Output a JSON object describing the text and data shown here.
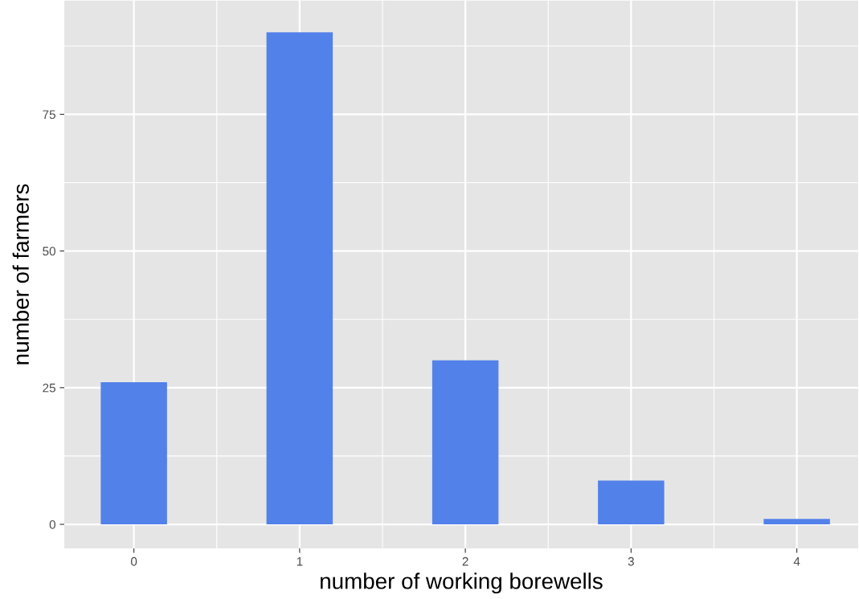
{
  "chart_data": {
    "type": "bar",
    "xlabel": "number of working borewells",
    "ylabel": "number of farmers",
    "x": [
      0,
      1,
      2,
      3,
      4
    ],
    "values": [
      26,
      90,
      30,
      8,
      1
    ],
    "color": "#5381ea",
    "xlim": [
      -0.42,
      4.37
    ],
    "ylim": [
      -4.4,
      95.8
    ],
    "xticks": [
      0,
      1,
      2,
      3,
      4
    ],
    "yticks": [
      0,
      25,
      50,
      75
    ],
    "grid": true,
    "legend": false
  }
}
